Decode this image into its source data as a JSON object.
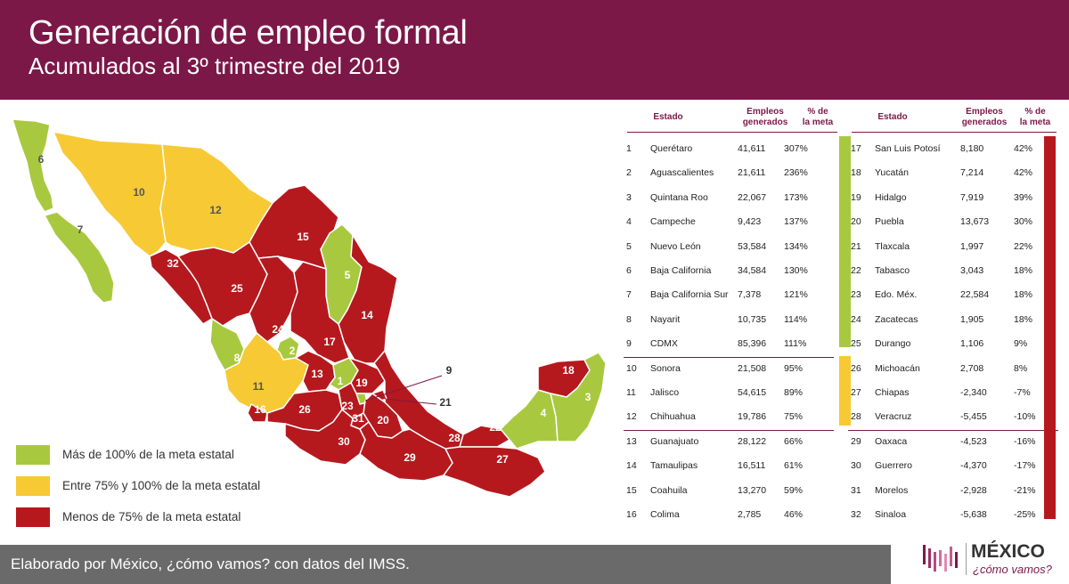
{
  "header": {
    "title": "Generación de empleo formal",
    "subtitle": "Acumulados al 3º trimestre del 2019"
  },
  "colors": {
    "header_bg": "#7c1848",
    "green": "#a8c93f",
    "yellow": "#f7c935",
    "red": "#b5191e",
    "accent_text": "#7c1848",
    "footer_bg": "#6a6a6a"
  },
  "legend": [
    {
      "label": "Más de 100% de la meta estatal",
      "color": "#a8c93f"
    },
    {
      "label": "Entre 75% y 100% de la meta estatal",
      "color": "#f7c935"
    },
    {
      "label": "Menos de 75% de la meta estatal",
      "color": "#b5191e"
    }
  ],
  "table": {
    "col_estado": "Estado",
    "col_empleos_1": "Empleos",
    "col_empleos_2": "generados",
    "col_meta_1": "% de",
    "col_meta_2": "la meta"
  },
  "rows": [
    {
      "rank": "1",
      "state": "Querétaro",
      "jobs": "41,611",
      "pct": "307%"
    },
    {
      "rank": "2",
      "state": "Aguascalientes",
      "jobs": "21,611",
      "pct": "236%"
    },
    {
      "rank": "3",
      "state": "Quintana  Roo",
      "jobs": "22,067",
      "pct": "173%"
    },
    {
      "rank": "4",
      "state": "Campeche",
      "jobs": "9,423",
      "pct": "137%"
    },
    {
      "rank": "5",
      "state": "Nuevo León",
      "jobs": "53,584",
      "pct": "134%"
    },
    {
      "rank": "6",
      "state": "Baja California",
      "jobs": "34,584",
      "pct": "130%"
    },
    {
      "rank": "7",
      "state": "Baja California Sur",
      "jobs": "7,378",
      "pct": "121%"
    },
    {
      "rank": "8",
      "state": "Nayarit",
      "jobs": "10,735",
      "pct": "114%"
    },
    {
      "rank": "9",
      "state": "CDMX",
      "jobs": "85,396",
      "pct": "111%"
    },
    {
      "rank": "10",
      "state": "Sonora",
      "jobs": "21,508",
      "pct": "95%"
    },
    {
      "rank": "11",
      "state": "Jalisco",
      "jobs": "54,615",
      "pct": "89%"
    },
    {
      "rank": "12",
      "state": "Chihuahua",
      "jobs": "19,786",
      "pct": "75%"
    },
    {
      "rank": "13",
      "state": "Guanajuato",
      "jobs": "28,122",
      "pct": "66%"
    },
    {
      "rank": "14",
      "state": "Tamaulipas",
      "jobs": "16,511",
      "pct": "61%"
    },
    {
      "rank": "15",
      "state": "Coahuila",
      "jobs": "13,270",
      "pct": "59%"
    },
    {
      "rank": "16",
      "state": "Colima",
      "jobs": "2,785",
      "pct": "46%"
    },
    {
      "rank": "17",
      "state": "San Luis Potosí",
      "jobs": "8,180",
      "pct": "42%"
    },
    {
      "rank": "18",
      "state": "Yucatán",
      "jobs": "7,214",
      "pct": "42%"
    },
    {
      "rank": "19",
      "state": "Hidalgo",
      "jobs": "7,919",
      "pct": "39%"
    },
    {
      "rank": "20",
      "state": "Puebla",
      "jobs": "13,673",
      "pct": "30%"
    },
    {
      "rank": "21",
      "state": "Tlaxcala",
      "jobs": "1,997",
      "pct": "22%"
    },
    {
      "rank": "22",
      "state": "Tabasco",
      "jobs": "3,043",
      "pct": "18%"
    },
    {
      "rank": "23",
      "state": "Edo. Méx.",
      "jobs": "22,584",
      "pct": "18%"
    },
    {
      "rank": "24",
      "state": "Zacatecas",
      "jobs": "1,905",
      "pct": "18%"
    },
    {
      "rank": "25",
      "state": "Durango",
      "jobs": "1,106",
      "pct": "9%"
    },
    {
      "rank": "26",
      "state": "Michoacán",
      "jobs": "2,708",
      "pct": "8%"
    },
    {
      "rank": "27",
      "state": "Chiapas",
      "jobs": "-2,340",
      "pct": "-7%"
    },
    {
      "rank": "28",
      "state": "Veracruz",
      "jobs": "-5,455",
      "pct": "-10%"
    },
    {
      "rank": "29",
      "state": "Oaxaca",
      "jobs": "-4,523",
      "pct": "-16%"
    },
    {
      "rank": "30",
      "state": "Guerrero",
      "jobs": "-4,370",
      "pct": "-17%"
    },
    {
      "rank": "31",
      "state": "Morelos",
      "jobs": "-2,928",
      "pct": "-21%"
    },
    {
      "rank": "32",
      "state": "Sinaloa",
      "jobs": "-5,638",
      "pct": "-25%"
    }
  ],
  "map_labels": [
    "1",
    "2",
    "3",
    "4",
    "5",
    "6",
    "7",
    "8",
    "9",
    "10",
    "11",
    "12",
    "13",
    "14",
    "15",
    "16",
    "17",
    "18",
    "19",
    "20",
    "21",
    "22",
    "23",
    "24",
    "25",
    "26",
    "27",
    "28",
    "29",
    "30",
    "31",
    "32"
  ],
  "footer": {
    "source": "Elaborado por México, ¿cómo vamos? con datos del IMSS."
  },
  "logo": {
    "line1": "MÉXICO",
    "line2": "¿cómo vamos?"
  }
}
